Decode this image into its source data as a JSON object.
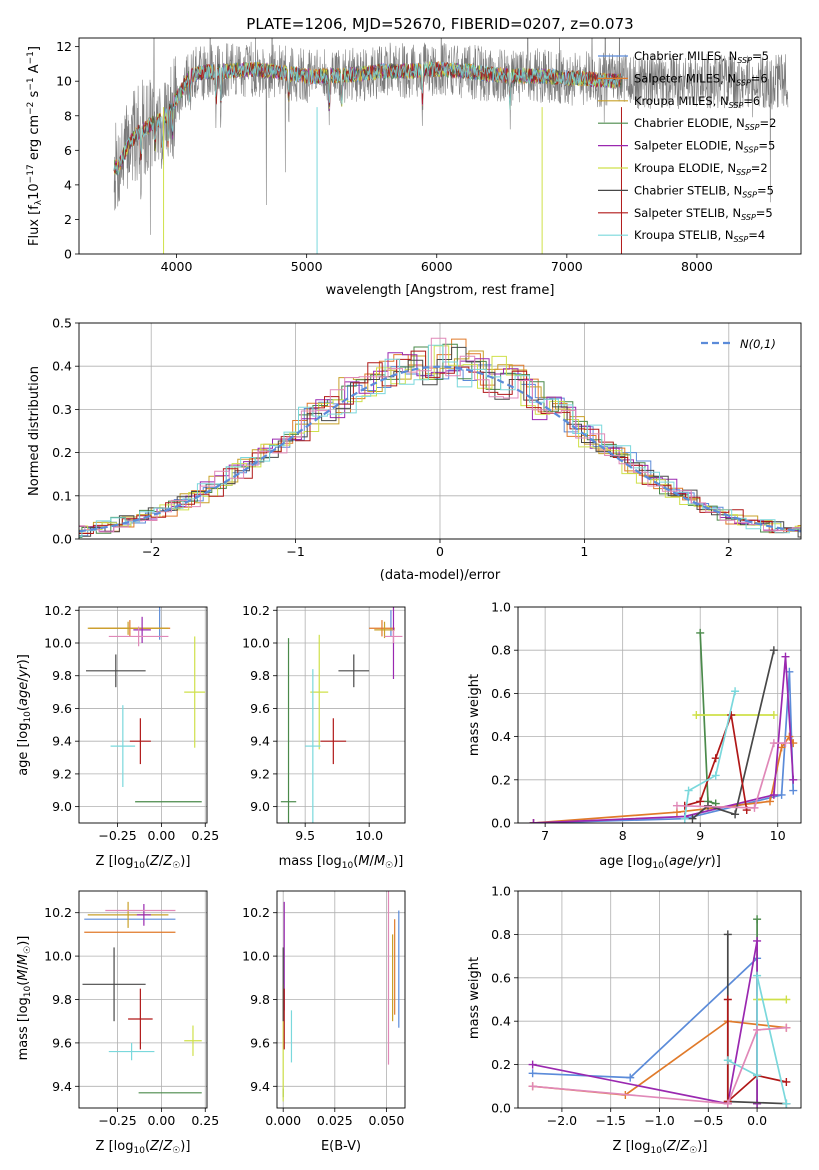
{
  "colors": {
    "Chabrier MILES": "#5b8bd9",
    "Salpeter MILES": "#e07a2a",
    "Kroupa MILES": "#c8a028",
    "Chabrier ELODIE": "#4a8a4a",
    "Salpeter ELODIE": "#9a28b0",
    "Kroupa ELODIE": "#cfe04a",
    "Chabrier STELIB": "#484848",
    "Salpeter STELIB": "#b01818",
    "Kroupa STELIB": "#7ad8dc",
    "pink": "#e088b8",
    "norm": "#5b8bd9"
  },
  "chart_data": [
    {
      "id": "spectrum",
      "type": "line",
      "title": "PLATE=1206, MJD=52670, FIBERID=0207, z=0.073",
      "xlabel": "wavelength [Angstrom, rest frame]",
      "ylabel": "Flux [f_λ 10^-17 erg cm^-2 s^-1 A^-1]",
      "xlim": [
        3250,
        8800
      ],
      "ylim": [
        0,
        12.5
      ],
      "xticks": [
        4000,
        5000,
        6000,
        7000,
        8000
      ],
      "yticks": [
        0,
        2,
        4,
        6,
        8,
        10,
        12
      ],
      "grid": false,
      "legend": "top-right",
      "series": [
        {
          "name": "Chabrier MILES, N_SSP=5",
          "label": "Chabrier MILES, N",
          "nssp": "=5"
        },
        {
          "name": "Salpeter MILES, N_SSP=6",
          "label": "Salpeter MILES, N",
          "nssp": "=6"
        },
        {
          "name": "Kroupa MILES, N_SSP=6",
          "label": "Kroupa MILES, N",
          "nssp": "=6"
        },
        {
          "name": "Chabrier ELODIE, N_SSP=2",
          "label": "Chabrier ELODIE, N",
          "nssp": "=2"
        },
        {
          "name": "Salpeter ELODIE, N_SSP=5",
          "label": "Salpeter ELODIE, N",
          "nssp": "=5"
        },
        {
          "name": "Kroupa ELODIE, N_SSP=2",
          "label": "Kroupa ELODIE, N",
          "nssp": "=2"
        },
        {
          "name": "Chabrier STELIB, N_SSP=5",
          "label": "Chabrier STELIB, N",
          "nssp": "=5"
        },
        {
          "name": "Salpeter STELIB, N_SSP=5",
          "label": "Salpeter STELIB, N",
          "nssp": "=5"
        },
        {
          "name": "Kroupa STELIB, N_SSP=4",
          "label": "Kroupa STELIB, N",
          "nssp": "=4"
        }
      ],
      "continuum": {
        "x": [
          3550,
          3620,
          3700,
          3800,
          3900,
          4000,
          4100,
          4200,
          4400,
          4600,
          4800,
          5000,
          5200,
          5400,
          5600,
          5800,
          6000,
          6200,
          6400,
          6600,
          6800,
          7000,
          7200,
          7400
        ],
        "y": [
          5.0,
          6.2,
          7.0,
          7.5,
          7.8,
          9.0,
          10.3,
          10.5,
          10.6,
          10.7,
          10.5,
          10.3,
          10.3,
          10.4,
          10.6,
          10.6,
          10.7,
          10.6,
          10.4,
          10.3,
          10.3,
          10.2,
          10.1,
          10.0
        ]
      },
      "data_range": [
        3520,
        8700
      ],
      "model_range": [
        3520,
        7420
      ]
    },
    {
      "id": "residual-histogram",
      "type": "histogram",
      "xlabel": "(data-model)/error",
      "ylabel": "Normed distribution",
      "xlim": [
        -2.5,
        2.5
      ],
      "ylim": [
        0,
        0.5
      ],
      "xticks": [
        -2,
        -1,
        0,
        1,
        2
      ],
      "yticks": [
        0.0,
        0.1,
        0.2,
        0.3,
        0.4,
        0.5
      ],
      "grid": true,
      "legend": "top-right",
      "reference_label": "N(0,1)",
      "bin_width": 0.1
    },
    {
      "id": "age-vs-metallicity",
      "type": "scatter",
      "xlabel": "Z [log10(Z/Z☉)]",
      "ylabel": "age  [log10(age/yr)]",
      "xlim": [
        -0.47,
        0.26
      ],
      "ylim": [
        8.9,
        10.22
      ],
      "xticks": [
        -0.25,
        0.0,
        0.25
      ],
      "xtick_labels": [
        "−0.25",
        "0.00",
        "0.25"
      ],
      "yticks": [
        9.0,
        9.2,
        9.4,
        9.6,
        9.8,
        10.0,
        10.2
      ],
      "grid": true,
      "points": [
        {
          "model": "Chabrier MILES",
          "x": -0.01,
          "y": 10.12,
          "xerr": 0.0,
          "yerr": 0.1
        },
        {
          "model": "Salpeter MILES",
          "x": -0.18,
          "y": 10.09,
          "xerr": 0.23,
          "yerr": 0.05
        },
        {
          "model": "Kroupa MILES",
          "x": -0.19,
          "y": 10.09,
          "xerr": 0.23,
          "yerr": 0.04
        },
        {
          "model": "Chabrier ELODIE",
          "x": 0.04,
          "y": 9.03,
          "xerr": 0.19,
          "yerr": 0.0
        },
        {
          "model": "Salpeter ELODIE",
          "x": -0.11,
          "y": 10.08,
          "xerr": 0.05,
          "yerr": 0.08
        },
        {
          "model": "Kroupa ELODIE",
          "x": 0.19,
          "y": 9.7,
          "xerr": 0.06,
          "yerr": 0.34
        },
        {
          "model": "Chabrier STELIB",
          "x": -0.26,
          "y": 9.83,
          "xerr": 0.17,
          "yerr": 0.1
        },
        {
          "model": "Salpeter STELIB",
          "x": -0.12,
          "y": 9.4,
          "xerr": 0.06,
          "yerr": 0.14
        },
        {
          "model": "Kroupa STELIB",
          "x": -0.22,
          "y": 9.37,
          "xerr": 0.07,
          "yerr": 0.25
        },
        {
          "model": "pink",
          "x": -0.13,
          "y": 10.04,
          "xerr": 0.17,
          "yerr": 0.06
        }
      ]
    },
    {
      "id": "age-vs-mass",
      "type": "scatter",
      "xlabel": "mass [log10(M/M☉)]",
      "xlim": [
        9.28,
        10.28
      ],
      "ylim": [
        8.9,
        10.22
      ],
      "xticks": [
        9.5,
        10.0
      ],
      "xtick_labels": [
        "9.5",
        "10.0"
      ],
      "yticks": [
        9.0,
        9.2,
        9.4,
        9.6,
        9.8,
        10.0,
        10.2
      ],
      "grid": true,
      "points": [
        {
          "model": "Chabrier MILES",
          "x": 10.17,
          "y": 10.12,
          "xerr": 0.0,
          "yerr": 0.08
        },
        {
          "model": "Salpeter MILES",
          "x": 10.1,
          "y": 10.09,
          "xerr": 0.1,
          "yerr": 0.05
        },
        {
          "model": "Kroupa MILES",
          "x": 10.12,
          "y": 10.08,
          "xerr": 0.08,
          "yerr": 0.05
        },
        {
          "model": "Chabrier ELODIE",
          "x": 9.37,
          "y": 9.03,
          "xerr": 0.06,
          "yerr": 1.0
        },
        {
          "model": "Salpeter ELODIE",
          "x": 10.19,
          "y": 10.08,
          "xerr": 0.0,
          "yerr": 0.3
        },
        {
          "model": "Kroupa ELODIE",
          "x": 9.61,
          "y": 9.7,
          "xerr": 0.07,
          "yerr": 0.35
        },
        {
          "model": "Chabrier STELIB",
          "x": 9.88,
          "y": 9.83,
          "xerr": 0.12,
          "yerr": 0.1
        },
        {
          "model": "Salpeter STELIB",
          "x": 9.72,
          "y": 9.4,
          "xerr": 0.1,
          "yerr": 0.14
        },
        {
          "model": "Kroupa STELIB",
          "x": 9.56,
          "y": 9.37,
          "xerr": 0.06,
          "yerr": 0.47
        },
        {
          "model": "pink",
          "x": 10.19,
          "y": 10.04,
          "xerr": 0.07,
          "yerr": 0.04
        }
      ]
    },
    {
      "id": "mass-weight-vs-age",
      "type": "line",
      "xlabel": "age  [log10(age/yr)]",
      "ylabel": "mass weight",
      "xlim": [
        6.65,
        10.3
      ],
      "ylim": [
        0,
        1.0
      ],
      "xticks": [
        7,
        8,
        9,
        10
      ],
      "yticks": [
        0.0,
        0.2,
        0.4,
        0.6,
        0.8,
        1.0
      ],
      "grid": true,
      "series": [
        {
          "model": "Chabrier MILES",
          "x": [
            6.85,
            8.8,
            10.05,
            10.15,
            10.2
          ],
          "y": [
            0.0,
            0.02,
            0.13,
            0.7,
            0.15
          ]
        },
        {
          "model": "Salpeter MILES",
          "x": [
            6.85,
            8.7,
            9.9,
            10.05,
            10.15,
            10.2
          ],
          "y": [
            0.0,
            0.05,
            0.1,
            0.35,
            0.4,
            0.37
          ]
        },
        {
          "model": "Chabrier ELODIE",
          "x": [
            9.0,
            9.1,
            9.2
          ],
          "y": [
            0.88,
            0.1,
            0.09
          ]
        },
        {
          "model": "Salpeter ELODIE",
          "x": [
            6.85,
            8.8,
            9.95,
            10.1,
            10.2
          ],
          "y": [
            0.0,
            0.03,
            0.13,
            0.77,
            0.2
          ]
        },
        {
          "model": "Kroupa ELODIE",
          "x": [
            8.95,
            9.95
          ],
          "y": [
            0.5,
            0.5
          ]
        },
        {
          "model": "Chabrier STELIB",
          "x": [
            8.9,
            9.1,
            9.45,
            9.95
          ],
          "y": [
            0.02,
            0.08,
            0.04,
            0.8
          ]
        },
        {
          "model": "Salpeter STELIB",
          "x": [
            8.8,
            9.0,
            9.2,
            9.4,
            9.6
          ],
          "y": [
            0.08,
            0.1,
            0.3,
            0.5,
            0.06
          ]
        },
        {
          "model": "Kroupa STELIB",
          "x": [
            8.8,
            8.85,
            9.2,
            9.45
          ],
          "y": [
            0.02,
            0.15,
            0.22,
            0.61
          ]
        },
        {
          "model": "pink",
          "x": [
            8.7,
            9.7,
            9.95,
            10.1
          ],
          "y": [
            0.08,
            0.07,
            0.37,
            0.37
          ]
        }
      ]
    },
    {
      "id": "mass-vs-metallicity",
      "type": "scatter",
      "xlabel": "Z [log10(Z/Z☉)]",
      "ylabel": "mass [log10(M/M☉)]",
      "xlim": [
        -0.47,
        0.26
      ],
      "ylim": [
        9.3,
        10.3
      ],
      "xticks": [
        -0.25,
        0.0,
        0.25
      ],
      "xtick_labels": [
        "−0.25",
        "0.00",
        "0.25"
      ],
      "yticks": [
        9.4,
        9.6,
        9.8,
        10.0,
        10.2
      ],
      "grid": true,
      "points": [
        {
          "model": "Chabrier MILES",
          "x": -0.18,
          "y": 10.17,
          "xerr": 0.26,
          "yerr": 0.0
        },
        {
          "model": "Salpeter MILES",
          "x": -0.18,
          "y": 10.11,
          "xerr": 0.26,
          "yerr": 0.0
        },
        {
          "model": "Kroupa MILES",
          "x": -0.19,
          "y": 10.19,
          "xerr": 0.23,
          "yerr": 0.06
        },
        {
          "model": "Chabrier ELODIE",
          "x": 0.05,
          "y": 9.37,
          "xerr": 0.18,
          "yerr": 0.0
        },
        {
          "model": "Salpeter ELODIE",
          "x": -0.1,
          "y": 10.19,
          "xerr": 0.04,
          "yerr": 0.05
        },
        {
          "model": "Kroupa ELODIE",
          "x": 0.18,
          "y": 9.61,
          "xerr": 0.05,
          "yerr": 0.07
        },
        {
          "model": "Chabrier STELIB",
          "x": -0.27,
          "y": 9.87,
          "xerr": 0.18,
          "yerr": 0.17
        },
        {
          "model": "Salpeter STELIB",
          "x": -0.12,
          "y": 9.71,
          "xerr": 0.07,
          "yerr": 0.14
        },
        {
          "model": "Kroupa STELIB",
          "x": -0.17,
          "y": 9.56,
          "xerr": 0.13,
          "yerr": 0.04
        },
        {
          "model": "pink",
          "x": -0.12,
          "y": 10.21,
          "xerr": 0.2,
          "yerr": 0.0
        }
      ]
    },
    {
      "id": "mass-vs-extinction",
      "type": "scatter",
      "xlabel": "E(B-V)",
      "xlim": [
        -0.003,
        0.059
      ],
      "ylim": [
        9.3,
        10.3
      ],
      "xticks": [
        0.0,
        0.025,
        0.05
      ],
      "xtick_labels": [
        "0.000",
        "0.025",
        "0.050"
      ],
      "yticks": [
        9.4,
        9.6,
        9.8,
        10.0,
        10.2
      ],
      "grid": true,
      "points": [
        {
          "model": "Chabrier MILES",
          "x": 0.056,
          "y": 9.94,
          "xerr": 0.0,
          "yerr": 0.27
        },
        {
          "model": "Salpeter MILES",
          "x": 0.054,
          "y": 9.95,
          "xerr": 0.0,
          "yerr": 0.22
        },
        {
          "model": "Kroupa MILES",
          "x": 0.053,
          "y": 9.9,
          "xerr": 0.0,
          "yerr": 0.2
        },
        {
          "model": "Chabrier ELODIE",
          "x": 0.0,
          "y": 9.37,
          "xerr": 0.0,
          "yerr": 0.02
        },
        {
          "model": "Salpeter ELODIE",
          "x": 0.0005,
          "y": 10.0,
          "xerr": 0.0,
          "yerr": 0.25
        },
        {
          "model": "Kroupa ELODIE",
          "x": 0.0,
          "y": 9.6,
          "xerr": 0.0,
          "yerr": 0.27
        },
        {
          "model": "Chabrier STELIB",
          "x": 0.0,
          "y": 9.87,
          "xerr": 0.0,
          "yerr": 0.17
        },
        {
          "model": "Salpeter STELIB",
          "x": 0.0005,
          "y": 9.71,
          "xerr": 0.0,
          "yerr": 0.14
        },
        {
          "model": "Kroupa STELIB",
          "x": 0.004,
          "y": 9.63,
          "xerr": 0.0,
          "yerr": 0.12
        },
        {
          "model": "pink",
          "x": 0.051,
          "y": 9.9,
          "xerr": 0.0,
          "yerr": 0.4
        }
      ]
    },
    {
      "id": "mass-weight-vs-metallicity",
      "type": "line",
      "xlabel": "Z [log10(Z/Z☉)]",
      "ylabel": "mass weight",
      "xlim": [
        -2.45,
        0.45
      ],
      "ylim": [
        0,
        1.0
      ],
      "xticks": [
        -2.0,
        -1.5,
        -1.0,
        -0.5,
        0.0
      ],
      "xtick_labels": [
        "−2.0",
        "−1.5",
        "−1.0",
        "−0.5",
        "0.0"
      ],
      "yticks": [
        0.0,
        0.2,
        0.4,
        0.6,
        0.8,
        1.0
      ],
      "grid": true,
      "series": [
        {
          "model": "Chabrier MILES",
          "x": [
            -2.3,
            -1.3,
            0.0
          ],
          "y": [
            0.16,
            0.14,
            0.69
          ]
        },
        {
          "model": "Salpeter MILES",
          "x": [
            -2.3,
            -1.35,
            -0.3,
            0.3
          ],
          "y": [
            0.1,
            0.06,
            0.4,
            0.37
          ]
        },
        {
          "model": "Chabrier ELODIE",
          "x": [
            0.0,
            0.0
          ],
          "y": [
            0.02,
            0.87
          ]
        },
        {
          "model": "Salpeter ELODIE",
          "x": [
            -2.3,
            -0.3,
            0.0,
            0.0
          ],
          "y": [
            0.2,
            0.02,
            0.77,
            0.02
          ]
        },
        {
          "model": "Kroupa ELODIE",
          "x": [
            0.0,
            0.3
          ],
          "y": [
            0.5,
            0.5
          ]
        },
        {
          "model": "Chabrier STELIB",
          "x": [
            -0.3,
            -0.3,
            0.3
          ],
          "y": [
            0.8,
            0.03,
            0.02
          ]
        },
        {
          "model": "Salpeter STELIB",
          "x": [
            -0.3,
            -0.3,
            0.0,
            0.3
          ],
          "y": [
            0.5,
            0.03,
            0.15,
            0.12
          ]
        },
        {
          "model": "Kroupa STELIB",
          "x": [
            -0.3,
            0.0,
            0.0,
            0.3
          ],
          "y": [
            0.22,
            0.15,
            0.61,
            0.02
          ]
        },
        {
          "model": "pink",
          "x": [
            -2.3,
            -0.3,
            0.0,
            0.3
          ],
          "y": [
            0.1,
            0.02,
            0.36,
            0.37
          ]
        }
      ]
    }
  ]
}
